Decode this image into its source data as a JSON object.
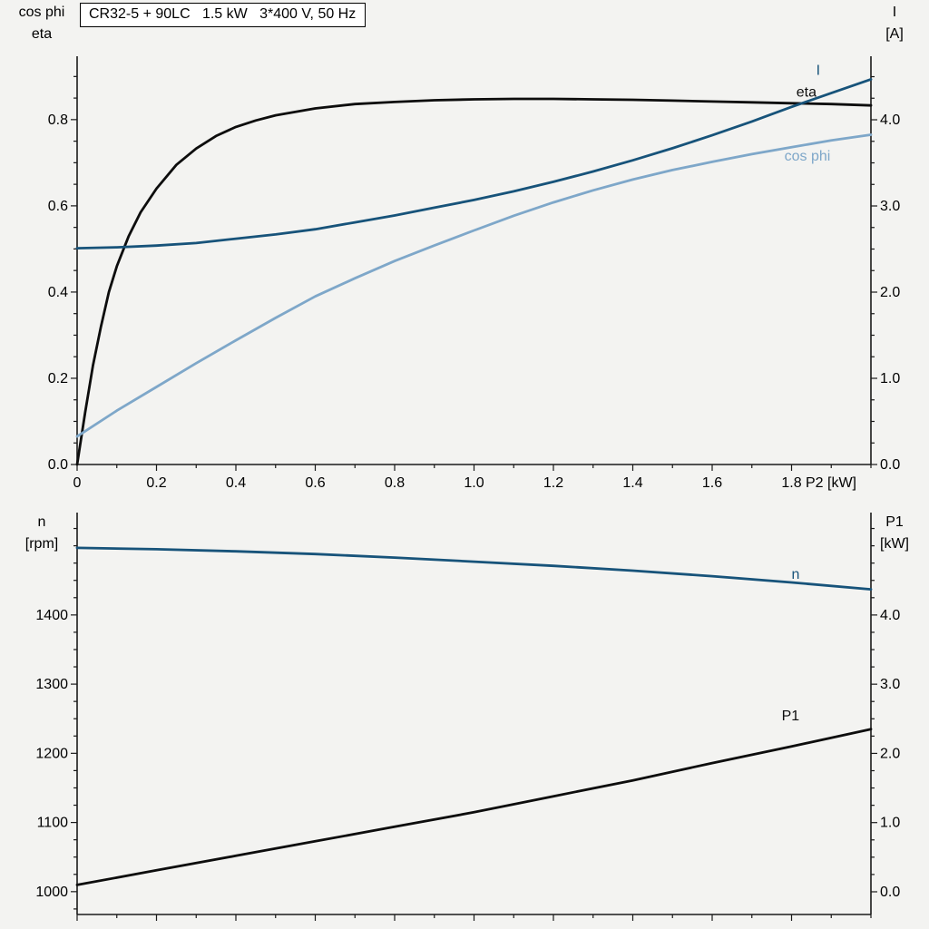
{
  "page": {
    "background": "#f3f3f1"
  },
  "colors": {
    "black_curve": "#0d0d0d",
    "dark_blue_curve": "#17537a",
    "light_blue_curve": "#7ea7c9",
    "axis": "#1a1a1a",
    "title_box_bg": "#ffffff"
  },
  "chart_data": [
    {
      "type": "line",
      "title": "CR32-5 + 90LC   1.5 kW   3*400 V, 50 Hz",
      "x_axis": {
        "label": "P2 [kW]",
        "range": [
          0,
          2.0
        ],
        "tick_values": [
          0,
          0.2,
          0.4,
          0.6,
          0.8,
          1.0,
          1.2,
          1.4,
          1.6,
          1.8
        ],
        "tick_labels": [
          "0",
          "0.2",
          "0.4",
          "0.6",
          "0.8",
          "1.0",
          "1.2",
          "1.4",
          "1.6",
          "1.8"
        ],
        "minor_step": 0.1
      },
      "y_left": {
        "title_lines": [
          "cos phi",
          "eta"
        ],
        "range": [
          0,
          0.947
        ],
        "tick_values": [
          0,
          0.2,
          0.4,
          0.6,
          0.8
        ],
        "tick_labels": [
          "0.0",
          "0.2",
          "0.4",
          "0.6",
          "0.8"
        ],
        "minor_step": 0.05
      },
      "y_right": {
        "title_lines": [
          "I",
          "[A]"
        ],
        "range": [
          0,
          4.737
        ],
        "tick_values": [
          0,
          1,
          2,
          3,
          4
        ],
        "tick_labels": [
          "0.0",
          "1.0",
          "2.0",
          "3.0",
          "4.0"
        ],
        "minor_step": 0.25
      },
      "series": [
        {
          "name": "eta",
          "label": "eta",
          "axis": "left",
          "color": "#0d0d0d",
          "label_pos": [
            1.812,
            0.853
          ],
          "points": [
            [
              0,
              0
            ],
            [
              0.02,
              0.12
            ],
            [
              0.04,
              0.23
            ],
            [
              0.06,
              0.32
            ],
            [
              0.08,
              0.4
            ],
            [
              0.1,
              0.46
            ],
            [
              0.13,
              0.53
            ],
            [
              0.16,
              0.585
            ],
            [
              0.2,
              0.64
            ],
            [
              0.25,
              0.695
            ],
            [
              0.3,
              0.733
            ],
            [
              0.35,
              0.762
            ],
            [
              0.4,
              0.783
            ],
            [
              0.45,
              0.798
            ],
            [
              0.5,
              0.81
            ],
            [
              0.6,
              0.826
            ],
            [
              0.7,
              0.836
            ],
            [
              0.8,
              0.841
            ],
            [
              0.9,
              0.845
            ],
            [
              1.0,
              0.847
            ],
            [
              1.1,
              0.848
            ],
            [
              1.2,
              0.848
            ],
            [
              1.3,
              0.847
            ],
            [
              1.4,
              0.846
            ],
            [
              1.5,
              0.844
            ],
            [
              1.6,
              0.842
            ],
            [
              1.7,
              0.84
            ],
            [
              1.8,
              0.838
            ],
            [
              1.9,
              0.836
            ],
            [
              2.0,
              0.833
            ]
          ]
        },
        {
          "name": "I",
          "label": "I",
          "axis": "right",
          "color": "#17537a",
          "label_pos": [
            1.862,
            4.52
          ],
          "points": [
            [
              0,
              2.51
            ],
            [
              0.1,
              2.52
            ],
            [
              0.2,
              2.54
            ],
            [
              0.3,
              2.57
            ],
            [
              0.4,
              2.62
            ],
            [
              0.5,
              2.67
            ],
            [
              0.6,
              2.73
            ],
            [
              0.7,
              2.81
            ],
            [
              0.8,
              2.89
            ],
            [
              0.9,
              2.98
            ],
            [
              1.0,
              3.07
            ],
            [
              1.1,
              3.17
            ],
            [
              1.2,
              3.28
            ],
            [
              1.3,
              3.4
            ],
            [
              1.4,
              3.53
            ],
            [
              1.5,
              3.67
            ],
            [
              1.6,
              3.82
            ],
            [
              1.7,
              3.98
            ],
            [
              1.8,
              4.15
            ],
            [
              1.9,
              4.31
            ],
            [
              2.0,
              4.47
            ]
          ]
        },
        {
          "name": "cos_phi",
          "label": "cos phi",
          "axis": "left",
          "color": "#7ea7c9",
          "label_pos": [
            1.782,
            0.705
          ],
          "points": [
            [
              0,
              0.065
            ],
            [
              0.1,
              0.125
            ],
            [
              0.2,
              0.18
            ],
            [
              0.3,
              0.235
            ],
            [
              0.4,
              0.288
            ],
            [
              0.5,
              0.34
            ],
            [
              0.6,
              0.39
            ],
            [
              0.7,
              0.432
            ],
            [
              0.8,
              0.472
            ],
            [
              0.9,
              0.508
            ],
            [
              1.0,
              0.543
            ],
            [
              1.1,
              0.577
            ],
            [
              1.2,
              0.608
            ],
            [
              1.3,
              0.636
            ],
            [
              1.4,
              0.661
            ],
            [
              1.5,
              0.683
            ],
            [
              1.6,
              0.702
            ],
            [
              1.7,
              0.72
            ],
            [
              1.8,
              0.736
            ],
            [
              1.9,
              0.752
            ],
            [
              2.0,
              0.765
            ]
          ]
        }
      ]
    },
    {
      "type": "line",
      "title": "",
      "x_axis": {
        "label": "",
        "range": [
          0,
          2.0
        ],
        "tick_values": [
          0,
          0.2,
          0.4,
          0.6,
          0.8,
          1.0,
          1.2,
          1.4,
          1.6,
          1.8
        ],
        "tick_labels": [],
        "minor_step": 0.1
      },
      "y_left": {
        "title_lines": [
          "n",
          "[rpm]"
        ],
        "range": [
          967,
          1548
        ],
        "tick_values": [
          1000,
          1100,
          1200,
          1300,
          1400
        ],
        "tick_labels": [
          "1000",
          "1100",
          "1200",
          "1300",
          "1400"
        ],
        "minor_step": 25
      },
      "y_right": {
        "title_lines": [
          "P1",
          "[kW]"
        ],
        "range": [
          -0.328,
          5.48
        ],
        "tick_values": [
          0,
          1,
          2,
          3,
          4
        ],
        "tick_labels": [
          "0.0",
          "1.0",
          "2.0",
          "3.0",
          "4.0"
        ],
        "minor_step": 0.25,
        "minor_start": 0
      },
      "series": [
        {
          "name": "n",
          "label": "n",
          "axis": "left",
          "color": "#17537a",
          "label_pos": [
            1.8,
            1452
          ],
          "points": [
            [
              0,
              1497
            ],
            [
              0.2,
              1495
            ],
            [
              0.4,
              1492
            ],
            [
              0.6,
              1488
            ],
            [
              0.8,
              1483
            ],
            [
              1.0,
              1477
            ],
            [
              1.2,
              1471
            ],
            [
              1.4,
              1464
            ],
            [
              1.6,
              1456
            ],
            [
              1.8,
              1447
            ],
            [
              2.0,
              1437
            ]
          ]
        },
        {
          "name": "P1",
          "label": "P1",
          "axis": "right",
          "color": "#0d0d0d",
          "label_pos": [
            1.775,
            2.48
          ],
          "points": [
            [
              0,
              0.1
            ],
            [
              0.2,
              0.31
            ],
            [
              0.4,
              0.52
            ],
            [
              0.6,
              0.73
            ],
            [
              0.8,
              0.94
            ],
            [
              1.0,
              1.15
            ],
            [
              1.2,
              1.38
            ],
            [
              1.4,
              1.61
            ],
            [
              1.6,
              1.86
            ],
            [
              1.8,
              2.1
            ],
            [
              2.0,
              2.35
            ]
          ]
        }
      ]
    }
  ]
}
